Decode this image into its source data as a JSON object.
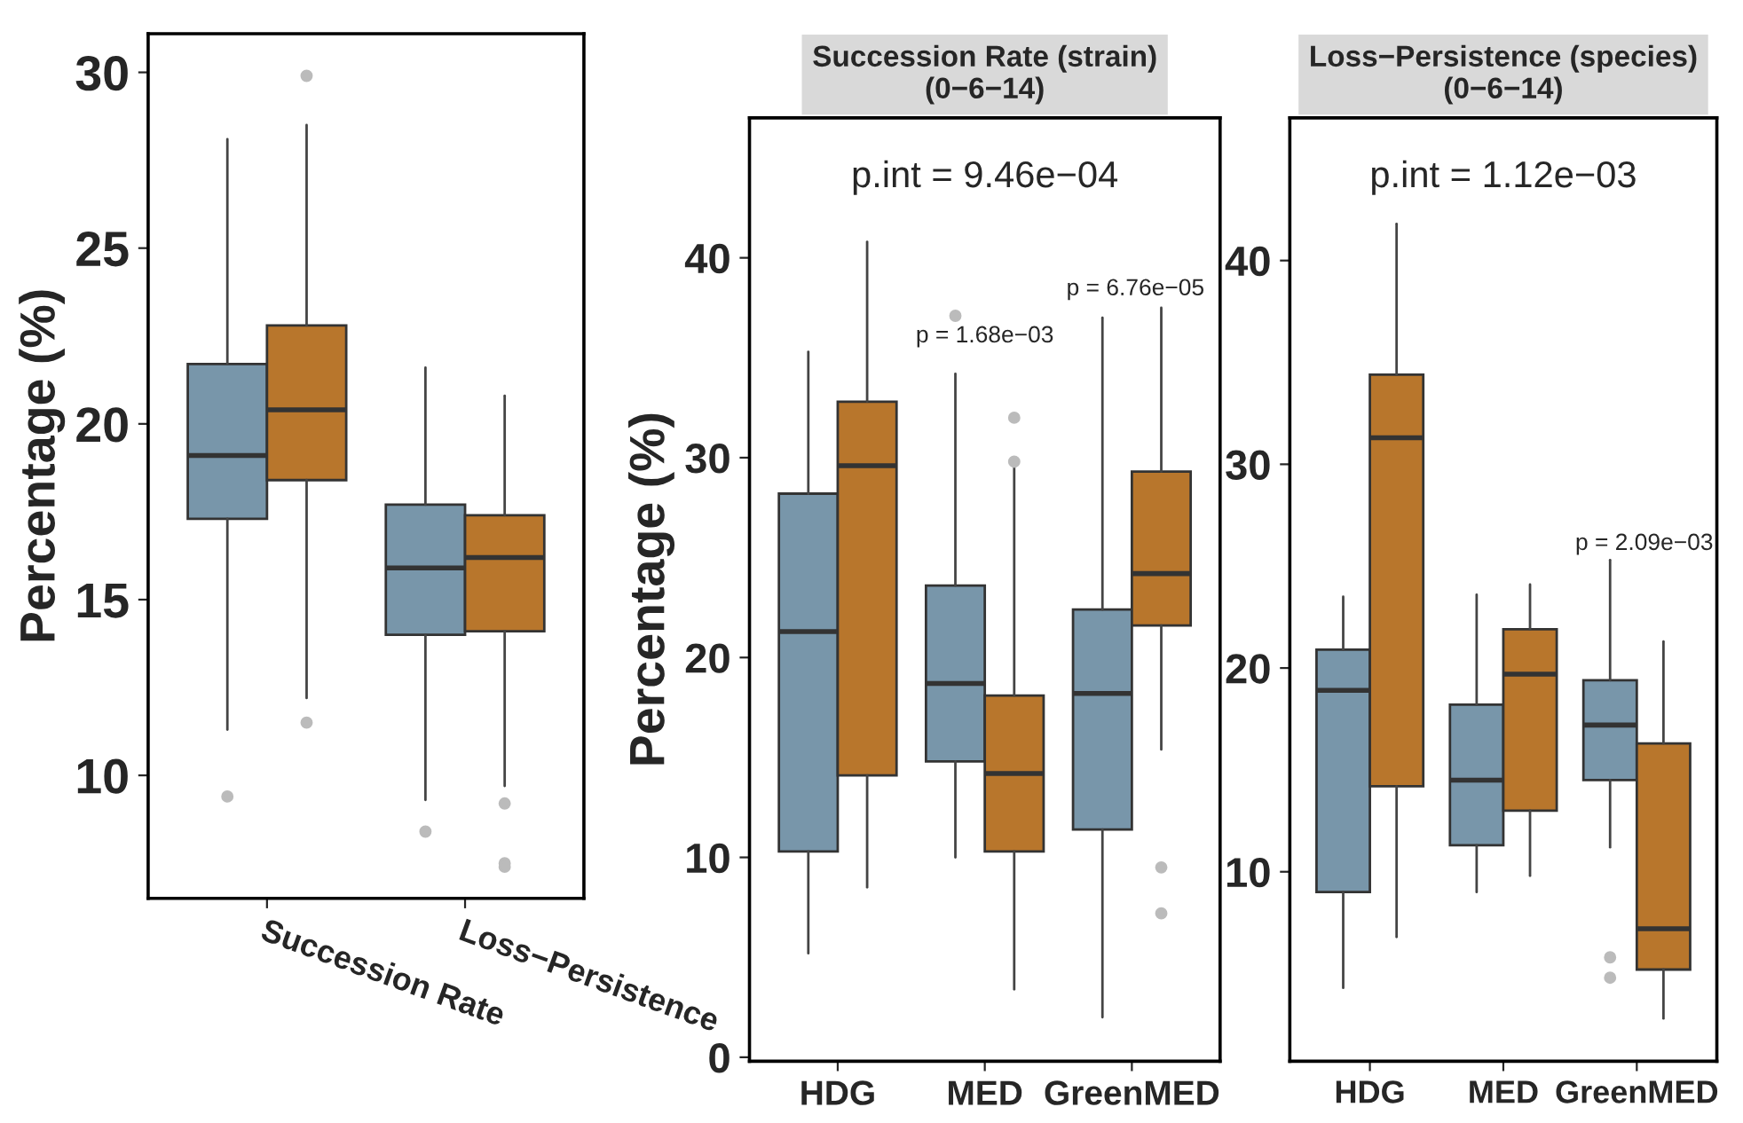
{
  "chart_data": [
    {
      "type": "box",
      "categories": [
        "Succession Rate",
        "Loss−Persistence"
      ],
      "ylabel": "Percentage (%)",
      "ylim": [
        6.5,
        31.1
      ],
      "yticks": [
        10,
        15,
        20,
        25,
        30
      ],
      "grid": false,
      "legend": false,
      "series": [
        {
          "color": "#7896aa",
          "boxes": [
            {
              "low": 11.3,
              "q1": 17.3,
              "median": 19.1,
              "q3": 21.7,
              "high": 28.1,
              "outliers": [
                9.4
              ]
            },
            {
              "low": 9.3,
              "q1": 14.0,
              "median": 15.9,
              "q3": 17.7,
              "high": 21.6,
              "outliers": [
                8.4
              ]
            }
          ]
        },
        {
          "color": "#b8762c",
          "boxes": [
            {
              "low": 12.2,
              "q1": 18.4,
              "median": 20.4,
              "q3": 22.8,
              "high": 28.5,
              "outliers": [
                11.5,
                29.9
              ]
            },
            {
              "low": 9.7,
              "q1": 14.1,
              "median": 16.2,
              "q3": 17.4,
              "high": 20.8,
              "outliers": [
                9.2,
                7.5,
                7.4
              ]
            }
          ]
        }
      ]
    },
    {
      "type": "box",
      "title": "Succession Rate (strain)\n(0−6−14)",
      "categories": [
        "HDG",
        "MED",
        "GreenMED"
      ],
      "ylabel": "Percentage (%)",
      "ylim": [
        -0.2,
        47
      ],
      "yticks": [
        0,
        10,
        20,
        30,
        40
      ],
      "grid": false,
      "legend": false,
      "annotations": [
        "p.int = 9.46e−04",
        "p = 1.68e−03",
        "p = 6.76e−05"
      ],
      "series": [
        {
          "color": "#7896aa",
          "boxes": [
            {
              "low": 5.2,
              "q1": 10.3,
              "median": 21.3,
              "q3": 28.2,
              "high": 35.3
            },
            {
              "low": 10.0,
              "q1": 14.8,
              "median": 18.7,
              "q3": 23.6,
              "high": 34.2,
              "outliers": [
                37.1
              ]
            },
            {
              "low": 2.0,
              "q1": 11.4,
              "median": 18.2,
              "q3": 22.4,
              "high": 37.0
            }
          ]
        },
        {
          "color": "#b8762c",
          "boxes": [
            {
              "low": 8.5,
              "q1": 14.1,
              "median": 29.6,
              "q3": 32.8,
              "high": 40.8
            },
            {
              "low": 3.4,
              "q1": 10.3,
              "median": 14.2,
              "q3": 18.1,
              "high": 29.7,
              "outliers": [
                32.0,
                29.8
              ]
            },
            {
              "low": 15.4,
              "q1": 21.6,
              "median": 24.2,
              "q3": 29.3,
              "high": 37.5,
              "outliers": [
                9.5,
                7.2
              ]
            }
          ]
        }
      ]
    },
    {
      "type": "box",
      "title": "Loss−Persistence (species)\n(0−6−14)",
      "categories": [
        "HDG",
        "MED",
        "GreenMED"
      ],
      "ylim": [
        0.7,
        47
      ],
      "yticks": [
        10,
        20,
        30,
        40
      ],
      "grid": false,
      "legend": false,
      "annotations": [
        "p.int = 1.12e−03",
        "p = 2.09e−03"
      ],
      "series": [
        {
          "color": "#7896aa",
          "boxes": [
            {
              "low": 4.3,
              "q1": 9.0,
              "median": 18.9,
              "q3": 20.9,
              "high": 23.5
            },
            {
              "low": 9.0,
              "q1": 11.3,
              "median": 14.5,
              "q3": 18.2,
              "high": 23.6
            },
            {
              "low": 11.2,
              "q1": 14.5,
              "median": 17.2,
              "q3": 19.4,
              "high": 25.3,
              "outliers": [
                5.8,
                4.8
              ]
            }
          ]
        },
        {
          "color": "#b8762c",
          "boxes": [
            {
              "low": 6.8,
              "q1": 14.2,
              "median": 31.3,
              "q3": 34.4,
              "high": 41.8
            },
            {
              "low": 9.8,
              "q1": 13.0,
              "median": 19.7,
              "q3": 21.9,
              "high": 24.1
            },
            {
              "low": 2.8,
              "q1": 5.2,
              "median": 7.2,
              "q3": 16.3,
              "high": 21.3
            }
          ]
        }
      ]
    }
  ]
}
